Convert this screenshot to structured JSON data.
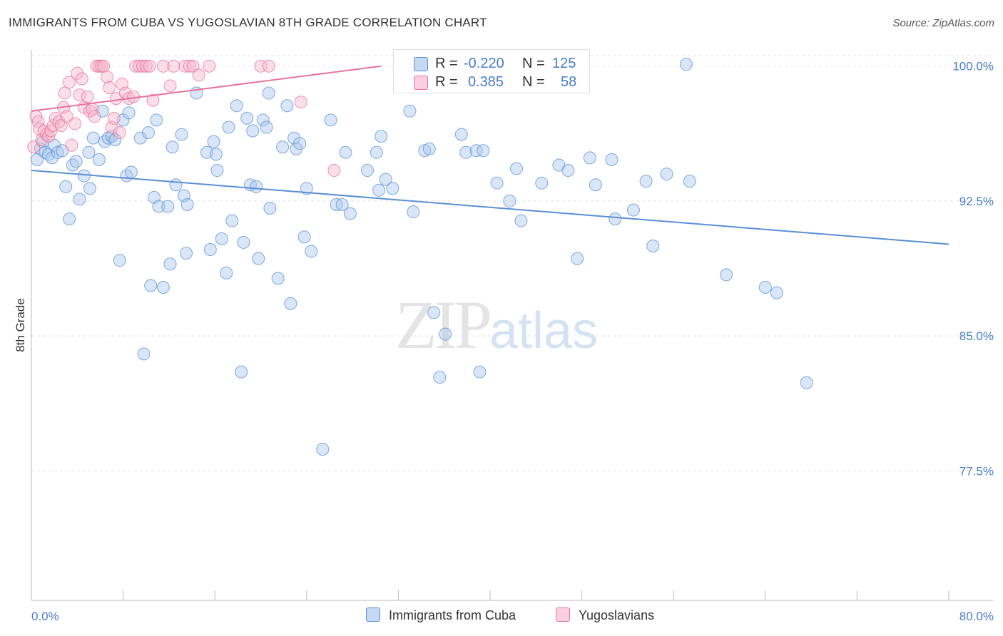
{
  "title": "IMMIGRANTS FROM CUBA VS YUGOSLAVIAN 8TH GRADE CORRELATION CHART",
  "source": "Source: ZipAtlas.com",
  "watermark": {
    "zip": "ZIP",
    "atlas": "atlas"
  },
  "legend": {
    "rows": [
      {
        "r_label": "R =",
        "r_value": "-0.220",
        "n_label": "N =",
        "n_value": "125",
        "color": "#a9c7ee"
      },
      {
        "r_label": "R =",
        "r_value": "0.385",
        "n_label": "N =",
        "n_value": "58",
        "color": "#f5b5cb"
      }
    ]
  },
  "bottom_legend": {
    "items": [
      {
        "label": "Immigrants from Cuba",
        "color": "#a9c7ee"
      },
      {
        "label": "Yugoslavians",
        "color": "#f5b5cb"
      }
    ]
  },
  "chart_data": {
    "type": "scatter",
    "title": "IMMIGRANTS FROM CUBA VS YUGOSLAVIAN 8TH GRADE CORRELATION CHART",
    "xlabel": "",
    "ylabel": "8th Grade",
    "xlim": [
      0,
      80
    ],
    "ylim": [
      70.3,
      100.9
    ],
    "x_tick_labels": [
      "0.0%",
      "80.0%"
    ],
    "y_ticks": [
      77.5,
      85.0,
      92.5,
      100.0
    ],
    "y_tick_labels": [
      "77.5%",
      "85.0%",
      "92.5%",
      "100.0%"
    ],
    "grid": true,
    "series": [
      {
        "name": "Immigrants from Cuba",
        "color": "#5b8fd6",
        "fill": "#a9c7ee",
        "trend": {
          "x": [
            0,
            80
          ],
          "y": [
            94.2,
            90.1
          ]
        },
        "points": [
          [
            0.5,
            94.8
          ],
          [
            0.8,
            95.4
          ],
          [
            1.0,
            95.8
          ],
          [
            1.2,
            95.2
          ],
          [
            1.5,
            95.1
          ],
          [
            1.8,
            94.9
          ],
          [
            2.0,
            95.6
          ],
          [
            2.3,
            95.2
          ],
          [
            2.7,
            95.3
          ],
          [
            3.0,
            93.3
          ],
          [
            3.3,
            91.5
          ],
          [
            3.6,
            94.5
          ],
          [
            3.9,
            94.7
          ],
          [
            4.2,
            92.6
          ],
          [
            4.6,
            93.9
          ],
          [
            5.0,
            95.2
          ],
          [
            5.1,
            93.2
          ],
          [
            5.4,
            96.0
          ],
          [
            5.9,
            94.8
          ],
          [
            6.2,
            97.5
          ],
          [
            6.4,
            95.8
          ],
          [
            6.7,
            96.0
          ],
          [
            7.0,
            96.1
          ],
          [
            7.3,
            95.9
          ],
          [
            7.7,
            89.2
          ],
          [
            8.0,
            97.0
          ],
          [
            8.3,
            93.9
          ],
          [
            8.5,
            97.4
          ],
          [
            8.7,
            94.1
          ],
          [
            9.5,
            96.0
          ],
          [
            9.8,
            84.0
          ],
          [
            10.2,
            96.3
          ],
          [
            10.4,
            87.8
          ],
          [
            10.7,
            92.7
          ],
          [
            10.9,
            97.0
          ],
          [
            11.1,
            92.2
          ],
          [
            11.5,
            87.7
          ],
          [
            11.9,
            92.2
          ],
          [
            12.1,
            89.0
          ],
          [
            12.3,
            95.5
          ],
          [
            12.6,
            93.4
          ],
          [
            13.1,
            96.2
          ],
          [
            13.3,
            92.8
          ],
          [
            13.6,
            92.3
          ],
          [
            13.5,
            89.6
          ],
          [
            14.4,
            98.5
          ],
          [
            15.3,
            95.2
          ],
          [
            15.6,
            89.8
          ],
          [
            15.9,
            95.8
          ],
          [
            16.1,
            95.1
          ],
          [
            16.2,
            94.2
          ],
          [
            16.6,
            90.4
          ],
          [
            17.0,
            88.5
          ],
          [
            17.2,
            96.6
          ],
          [
            17.5,
            91.4
          ],
          [
            17.9,
            97.8
          ],
          [
            18.3,
            83.0
          ],
          [
            18.5,
            90.2
          ],
          [
            18.8,
            97.1
          ],
          [
            19.1,
            93.4
          ],
          [
            19.3,
            96.4
          ],
          [
            19.6,
            93.3
          ],
          [
            19.8,
            89.3
          ],
          [
            20.2,
            97.0
          ],
          [
            20.5,
            96.6
          ],
          [
            20.7,
            98.5
          ],
          [
            20.8,
            92.1
          ],
          [
            21.5,
            88.2
          ],
          [
            21.9,
            95.5
          ],
          [
            22.3,
            97.8
          ],
          [
            22.6,
            86.8
          ],
          [
            22.9,
            96.0
          ],
          [
            23.1,
            95.4
          ],
          [
            23.4,
            95.7
          ],
          [
            23.8,
            90.5
          ],
          [
            24.0,
            93.2
          ],
          [
            24.4,
            89.7
          ],
          [
            25.4,
            78.7
          ],
          [
            26.1,
            97.0
          ],
          [
            26.6,
            92.3
          ],
          [
            27.1,
            92.3
          ],
          [
            27.4,
            95.2
          ],
          [
            27.8,
            91.8
          ],
          [
            29.3,
            94.2
          ],
          [
            30.1,
            95.2
          ],
          [
            30.5,
            96.1
          ],
          [
            30.3,
            93.1
          ],
          [
            30.9,
            93.7
          ],
          [
            31.5,
            93.2
          ],
          [
            33.0,
            97.5
          ],
          [
            33.3,
            91.9
          ],
          [
            34.3,
            95.3
          ],
          [
            34.7,
            95.4
          ],
          [
            35.1,
            86.3
          ],
          [
            35.6,
            82.7
          ],
          [
            36.1,
            85.1
          ],
          [
            37.5,
            96.2
          ],
          [
            37.9,
            95.2
          ],
          [
            38.8,
            95.3
          ],
          [
            39.1,
            83.0
          ],
          [
            39.4,
            95.3
          ],
          [
            40.6,
            93.5
          ],
          [
            41.7,
            92.5
          ],
          [
            42.3,
            94.3
          ],
          [
            42.7,
            91.4
          ],
          [
            44.5,
            93.5
          ],
          [
            46.0,
            94.5
          ],
          [
            46.8,
            94.2
          ],
          [
            47.6,
            89.3
          ],
          [
            48.7,
            94.9
          ],
          [
            49.2,
            93.4
          ],
          [
            50.6,
            94.8
          ],
          [
            50.9,
            91.5
          ],
          [
            52.5,
            92.0
          ],
          [
            53.6,
            93.6
          ],
          [
            54.2,
            90.0
          ],
          [
            55.4,
            94.0
          ],
          [
            57.1,
            100.1
          ],
          [
            57.4,
            93.6
          ],
          [
            60.6,
            88.4
          ],
          [
            64.0,
            87.7
          ],
          [
            65.0,
            87.4
          ],
          [
            67.6,
            82.4
          ]
        ]
      },
      {
        "name": "Yugoslavians",
        "color": "#e8729a",
        "fill": "#f5b5cb",
        "trend": {
          "x": [
            0,
            30.5
          ],
          "y": [
            97.5,
            100.0
          ]
        },
        "points": [
          [
            0.2,
            95.5
          ],
          [
            0.4,
            97.2
          ],
          [
            0.6,
            96.9
          ],
          [
            0.7,
            96.5
          ],
          [
            0.9,
            95.9
          ],
          [
            1.1,
            96.4
          ],
          [
            1.3,
            96.2
          ],
          [
            1.5,
            96.1
          ],
          [
            1.7,
            96.4
          ],
          [
            1.9,
            96.7
          ],
          [
            2.1,
            97.1
          ],
          [
            2.4,
            96.9
          ],
          [
            2.6,
            96.7
          ],
          [
            2.8,
            97.7
          ],
          [
            2.9,
            98.5
          ],
          [
            3.1,
            97.2
          ],
          [
            3.3,
            99.1
          ],
          [
            3.5,
            95.6
          ],
          [
            3.8,
            96.8
          ],
          [
            4.0,
            99.6
          ],
          [
            4.2,
            98.4
          ],
          [
            4.4,
            99.3
          ],
          [
            4.6,
            97.7
          ],
          [
            4.9,
            98.3
          ],
          [
            5.1,
            97.5
          ],
          [
            5.3,
            97.6
          ],
          [
            5.5,
            97.2
          ],
          [
            5.7,
            100.0
          ],
          [
            5.9,
            100.0
          ],
          [
            6.1,
            100.0
          ],
          [
            6.3,
            100.0
          ],
          [
            6.6,
            99.4
          ],
          [
            6.8,
            98.8
          ],
          [
            7.0,
            96.6
          ],
          [
            7.2,
            97.1
          ],
          [
            7.4,
            98.2
          ],
          [
            7.7,
            96.3
          ],
          [
            7.9,
            99.0
          ],
          [
            8.2,
            98.5
          ],
          [
            8.5,
            98.2
          ],
          [
            8.9,
            98.3
          ],
          [
            9.1,
            100.0
          ],
          [
            9.4,
            100.0
          ],
          [
            9.7,
            100.0
          ],
          [
            10.0,
            100.0
          ],
          [
            10.3,
            100.0
          ],
          [
            10.6,
            98.1
          ],
          [
            11.5,
            100.0
          ],
          [
            12.1,
            98.9
          ],
          [
            12.4,
            100.0
          ],
          [
            13.4,
            100.0
          ],
          [
            13.8,
            100.0
          ],
          [
            14.1,
            100.0
          ],
          [
            14.6,
            99.5
          ],
          [
            15.5,
            100.0
          ],
          [
            20.0,
            100.0
          ],
          [
            20.7,
            100.0
          ],
          [
            23.5,
            98.0
          ],
          [
            26.4,
            94.2
          ]
        ]
      }
    ]
  }
}
